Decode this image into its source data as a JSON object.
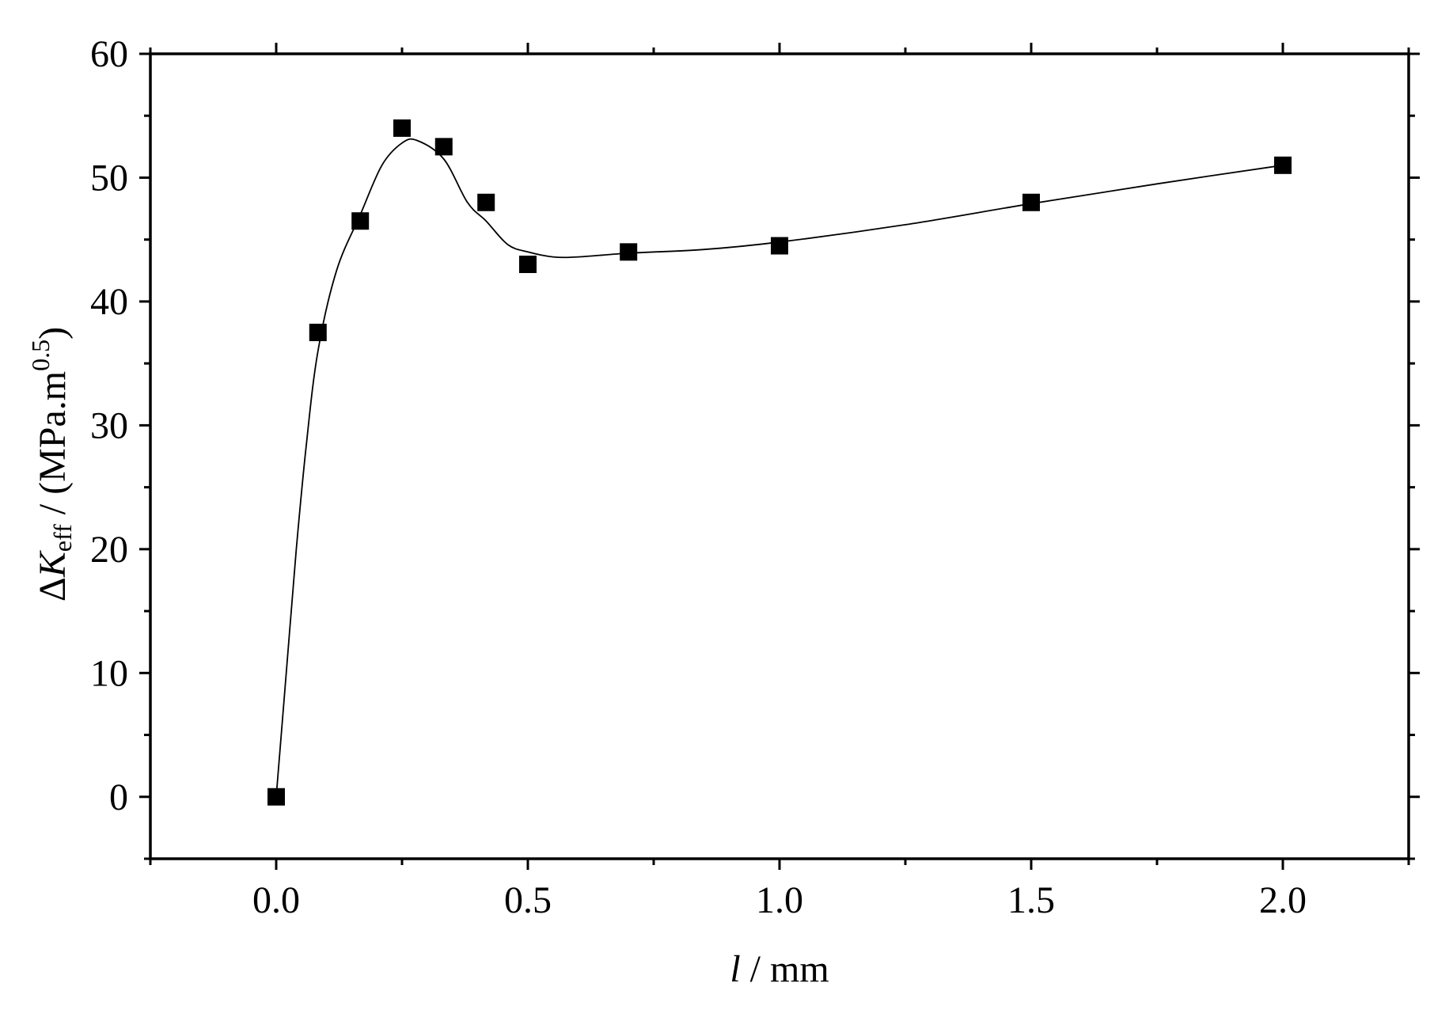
{
  "chart_data": {
    "type": "scatter",
    "x": [
      0.0,
      0.083,
      0.167,
      0.25,
      0.333,
      0.417,
      0.5,
      0.7,
      1.0,
      1.5,
      2.0
    ],
    "y": [
      0,
      37.5,
      46.5,
      54,
      52.5,
      48,
      43,
      44,
      44.5,
      48,
      51
    ],
    "fit_curve": {
      "x": [
        0.0,
        0.02,
        0.04,
        0.06,
        0.083,
        0.12,
        0.167,
        0.21,
        0.25,
        0.28,
        0.333,
        0.38,
        0.417,
        0.46,
        0.5,
        0.55,
        0.6,
        0.7,
        0.85,
        1.0,
        1.25,
        1.5,
        1.75,
        2.0
      ],
      "y": [
        0,
        10,
        20,
        28.5,
        36,
        42.5,
        47.0,
        51.0,
        52.8,
        53.0,
        51.5,
        48.0,
        46.5,
        44.6,
        44.0,
        43.6,
        43.6,
        43.9,
        44.2,
        44.8,
        46.2,
        47.9,
        49.5,
        51.0
      ]
    },
    "marker": "filled-square",
    "marker_color": "#000000",
    "line_color": "#000000",
    "xlim": [
      -0.25,
      2.25
    ],
    "ylim": [
      -5,
      60
    ],
    "x_major_ticks": [
      0.0,
      0.5,
      1.0,
      1.5,
      2.0
    ],
    "x_tick_labels": [
      "0.0",
      "0.5",
      "1.0",
      "1.5",
      "2.0"
    ],
    "y_major_ticks": [
      0,
      10,
      20,
      30,
      40,
      50,
      60
    ],
    "y_tick_labels": [
      "0",
      "10",
      "20",
      "30",
      "40",
      "50",
      "60"
    ],
    "xlabel": {
      "italic": "l",
      "rest": " / mm"
    },
    "ylabel": {
      "delta": "Δ",
      "italic": "K",
      "sub": "eff",
      "rest": " / (MPa.m",
      "sup": "0.5",
      "close": ")"
    },
    "grid": false,
    "legend": "none"
  }
}
